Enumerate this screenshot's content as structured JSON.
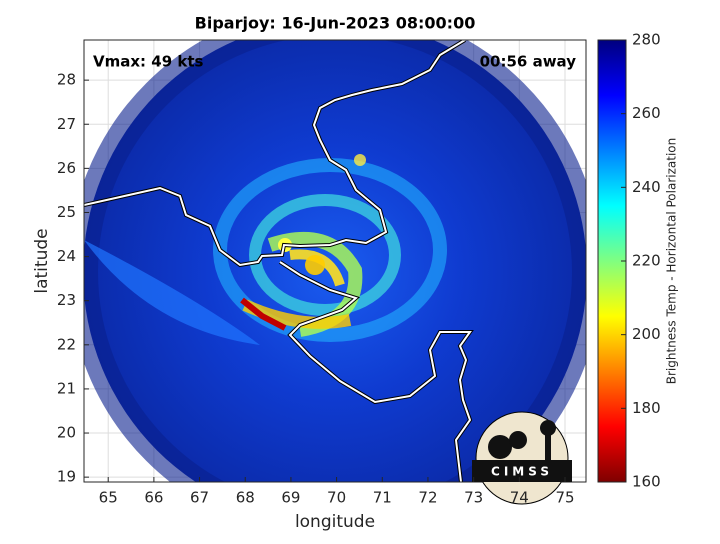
{
  "chart_data": {
    "type": "map",
    "title": "Biparjoy: 16-Jun-2023 08:00:00",
    "annotations": [
      "Vmax: 49 kts",
      "00:56 away"
    ],
    "xlabel": "longitude",
    "ylabel": "latitude",
    "xlim": [
      64.47,
      75.46
    ],
    "ylim": [
      18.89,
      28.91
    ],
    "xticks": [
      65,
      66,
      67,
      68,
      69,
      70,
      71,
      72,
      73,
      74,
      75
    ],
    "yticks": [
      19,
      20,
      21,
      22,
      23,
      24,
      25,
      26,
      27,
      28
    ],
    "grid": true,
    "colorbar": {
      "label": "Brightness Temp - Horizontal Polarization",
      "lim": [
        160,
        280
      ],
      "ticks": [
        160,
        180,
        200,
        220,
        240,
        260,
        280
      ],
      "colors": [
        "#7f0000",
        "#ff0000",
        "#ff8000",
        "#ffff00",
        "#80ff80",
        "#00ffff",
        "#0080ff",
        "#0000ff",
        "#00007f"
      ]
    },
    "logo": "CIMSS"
  }
}
